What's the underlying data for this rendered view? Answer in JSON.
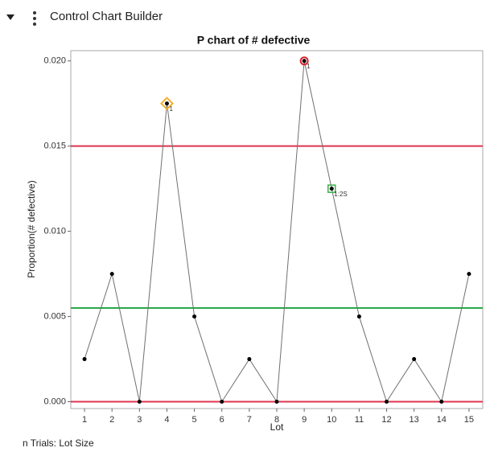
{
  "header": {
    "title": "Control Chart Builder"
  },
  "footer": "n Trials: Lot Size",
  "chart_data": {
    "type": "line",
    "title": "P chart of # defective",
    "x_label": "Lot",
    "y_label": "Proportion(# defective)",
    "categories": [
      "1",
      "2",
      "3",
      "4",
      "5",
      "6",
      "7",
      "8",
      "9",
      "10",
      "11",
      "12",
      "13",
      "14",
      "15"
    ],
    "values": [
      0.0025,
      0.0075,
      0,
      0.0175,
      0.005,
      0,
      0.0025,
      0,
      0.02,
      0.0125,
      0.005,
      0,
      0.0025,
      0,
      0.0075
    ],
    "color": "#707070",
    "point_color": "#000000",
    "ylim": [
      -0.0004,
      0.0206
    ],
    "yticks": [
      {
        "value": 0,
        "label": "0.000"
      },
      {
        "value": 0.005,
        "label": "0.005"
      },
      {
        "value": 0.01,
        "label": "0.010"
      },
      {
        "value": 0.015,
        "label": "0.015"
      },
      {
        "value": 0.02,
        "label": "0.020"
      }
    ],
    "ucl": 0.015,
    "center": 0.0055,
    "lcl": 0,
    "limit_color": "#e0344f",
    "center_color": "#2aa84a",
    "annotations": [
      {
        "at": "4",
        "label": "1",
        "shape": "diamond",
        "color": "#f0b030"
      },
      {
        "at": "9",
        "label": "1",
        "shape": "circle",
        "color": "#e0202a"
      },
      {
        "at": "10",
        "label": "1:2S",
        "shape": "square",
        "color": "#3cb04a"
      }
    ]
  }
}
